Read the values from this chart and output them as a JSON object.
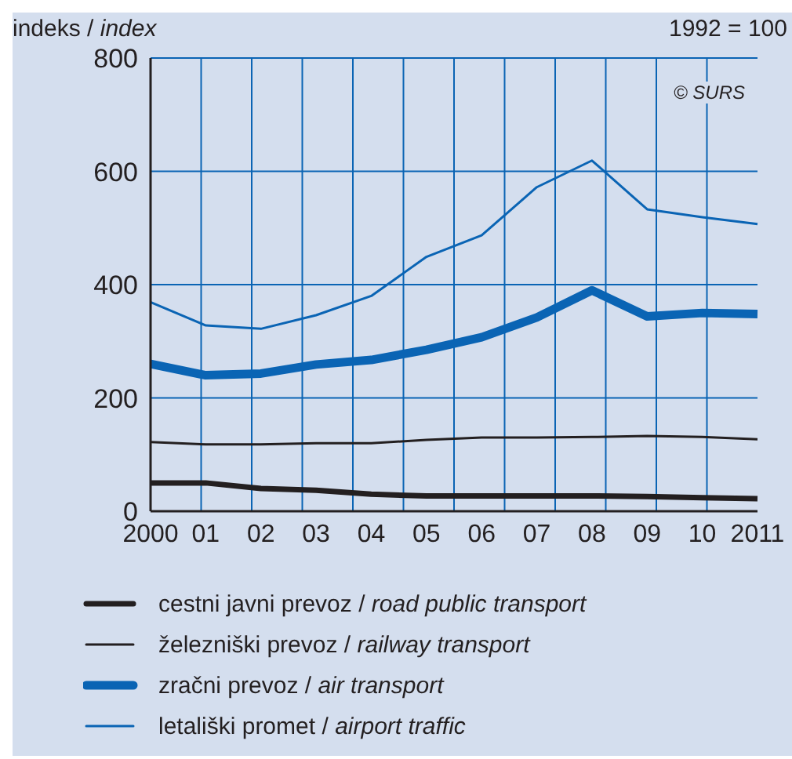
{
  "chart_data": {
    "type": "line",
    "ylabel": "indeks / index",
    "annotations": [
      "1992 = 100",
      "© SURS"
    ],
    "categories": [
      "2000",
      "01",
      "02",
      "03",
      "04",
      "05",
      "06",
      "07",
      "08",
      "09",
      "10",
      "2011"
    ],
    "series": [
      {
        "name": "cestni javni prevoz / road public transport",
        "color": "#231f20",
        "values": [
          50,
          50,
          40,
          37,
          30,
          27,
          27,
          27,
          27,
          26,
          24,
          22
        ]
      },
      {
        "name": "železniški prevoz / railway transport",
        "color": "#231f20",
        "values": [
          122,
          118,
          118,
          120,
          120,
          126,
          130,
          130,
          131,
          133,
          131,
          127
        ]
      },
      {
        "name": "zračni prevoz / air transport",
        "color": "#0a64b4",
        "values": [
          260,
          240,
          243,
          259,
          267,
          285,
          307,
          342,
          390,
          344,
          350,
          348
        ]
      },
      {
        "name": "letališki promet / airport traffic",
        "color": "#0a64b4",
        "values": [
          369,
          328,
          322,
          346,
          380,
          449,
          487,
          572,
          619,
          533,
          519,
          507
        ]
      }
    ],
    "ylim": [
      0,
      800
    ],
    "yticks": [
      0,
      200,
      400,
      600,
      800
    ],
    "grid": true,
    "legend": "bottom",
    "marker": "none",
    "line_style": "solid"
  }
}
